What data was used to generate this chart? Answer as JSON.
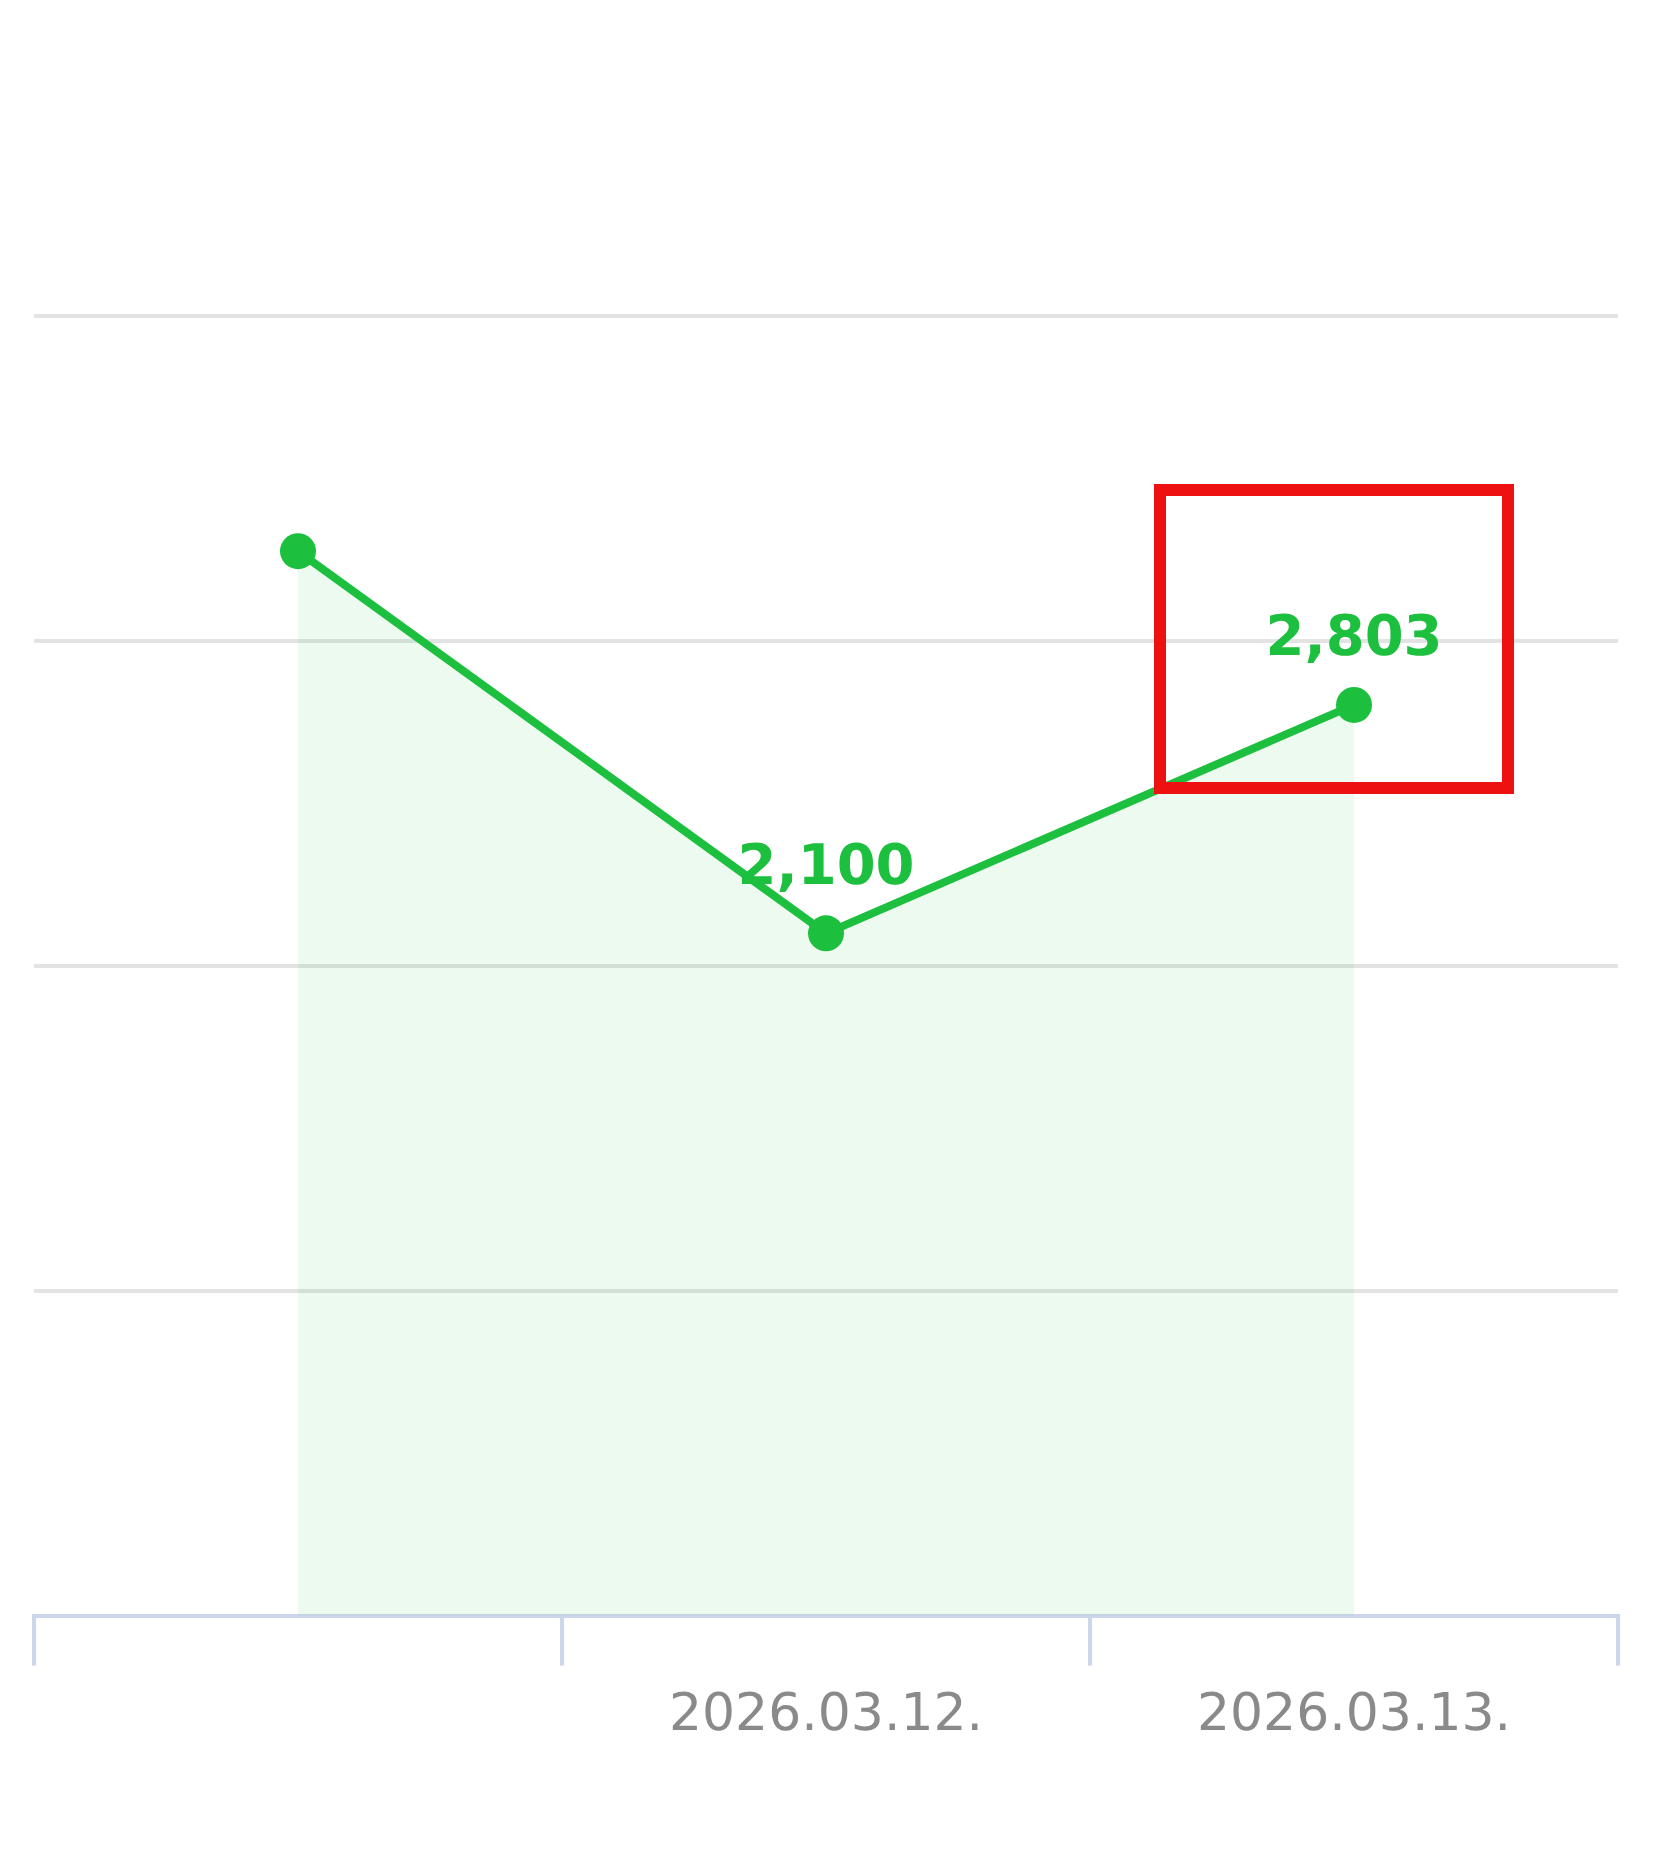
{
  "chart_data": {
    "type": "area",
    "categories": [
      null,
      "2026.03.12.",
      "2026.03.13."
    ],
    "series": [
      {
        "color": "#1dbf3f",
        "values": [
          3276,
          2100,
          2803
        ],
        "value_labels": [
          null,
          "2,100",
          "2,803"
        ]
      }
    ],
    "ylim": [
      0,
      4000
    ],
    "yticks": [
      {
        "value": 0,
        "label": null
      },
      {
        "value": 1000,
        "label": null
      },
      {
        "value": 2000,
        "label": null
      },
      {
        "value": 3000,
        "label": null
      },
      {
        "value": 4000,
        "label": null
      }
    ],
    "tick_labels": "x",
    "grid": "y",
    "marker": "circle",
    "legend": false
  }
}
